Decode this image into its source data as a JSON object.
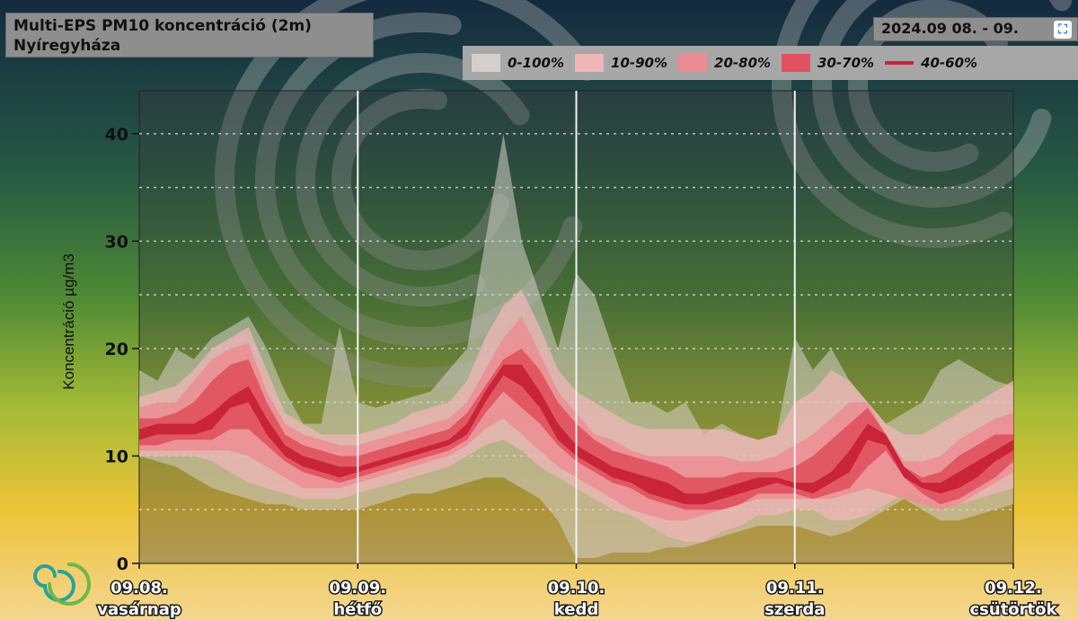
{
  "header": {
    "title": "Multi-EPS PM10 koncentráció (2m)",
    "location": "Nyíregyháza",
    "date_range": "2024.09 08. - 09.",
    "icon": "expand-icon"
  },
  "legend": [
    {
      "label": "0-100%",
      "color": "#d5cfcb"
    },
    {
      "label": "10-90%",
      "color": "#efb6b8"
    },
    {
      "label": "20-80%",
      "color": "#ec8d93"
    },
    {
      "label": "30-70%",
      "color": "#e0525f"
    },
    {
      "label": "40-60%",
      "color": "#c9243a"
    }
  ],
  "chart_data": {
    "type": "area",
    "title": "Multi-EPS PM10 koncentráció (2m)",
    "subtitle": "Nyíregyháza",
    "ylabel": "Koncentráció µg/m3",
    "xlabel": "",
    "ylim": [
      0,
      44
    ],
    "yticks": [
      0,
      10,
      20,
      30,
      40
    ],
    "x_unit": "hours since 09.08. 00:00",
    "xlim": [
      0,
      96
    ],
    "x_ticks": [
      {
        "x": 0,
        "date": "09.08.",
        "day": "vasárnap"
      },
      {
        "x": 24,
        "date": "09.09.",
        "day": "hétfő"
      },
      {
        "x": 48,
        "date": "09.10.",
        "day": "kedd"
      },
      {
        "x": 72,
        "date": "09.11.",
        "day": "szerda"
      },
      {
        "x": 96,
        "date": "09.12.",
        "day": "csütörtök"
      }
    ],
    "grid": true,
    "legend_position": "top-right",
    "x": [
      0,
      2,
      4,
      6,
      8,
      10,
      12,
      14,
      16,
      18,
      20,
      22,
      24,
      26,
      28,
      30,
      32,
      34,
      36,
      38,
      40,
      42,
      44,
      46,
      48,
      50,
      52,
      54,
      56,
      58,
      60,
      62,
      64,
      66,
      68,
      70,
      72,
      74,
      76,
      78,
      80,
      82,
      84,
      86,
      88,
      90,
      92,
      94,
      96
    ],
    "series": [
      {
        "name": "0-100%",
        "lower": [
          10,
          9.5,
          9,
          8,
          7,
          6.5,
          6,
          5.5,
          5.5,
          5,
          5,
          5,
          5,
          5.5,
          6,
          6.5,
          6.5,
          7,
          7.5,
          8,
          8,
          7,
          6,
          4,
          0.5,
          0.5,
          1,
          1,
          1,
          1.5,
          1.5,
          2,
          2.5,
          3,
          3.5,
          3.5,
          3.5,
          3,
          2.5,
          3,
          4,
          5,
          6,
          5,
          4,
          4,
          4.5,
          5,
          5.5
        ],
        "upper": [
          18,
          17,
          20,
          19,
          21,
          22,
          23,
          20,
          16,
          13,
          13,
          22,
          15,
          14.5,
          15,
          15.5,
          16,
          18,
          20,
          30,
          40,
          30,
          25,
          20,
          27,
          25,
          20,
          15,
          15,
          14,
          15,
          12,
          13,
          12,
          11.5,
          12,
          21,
          18,
          20,
          17,
          15,
          13,
          14,
          15,
          18,
          19,
          18,
          17,
          16.5
        ]
      },
      {
        "name": "10-90%",
        "lower": [
          10,
          10,
          10,
          10,
          9.5,
          8.5,
          7.5,
          7,
          6.5,
          6,
          6,
          6,
          6.5,
          7,
          7.5,
          8,
          8.5,
          9,
          10,
          11,
          11.5,
          10.5,
          9,
          8,
          7,
          6,
          5,
          4.5,
          3.5,
          2.5,
          2,
          2,
          3,
          3.5,
          4.5,
          4.5,
          5,
          5,
          4,
          4,
          4.5,
          5.5,
          6.5,
          6,
          5.5,
          5.5,
          6,
          6.5,
          7
        ],
        "upper": [
          15.5,
          16,
          16.5,
          18,
          20,
          21,
          22,
          18,
          14,
          13,
          12,
          12,
          12,
          12.5,
          13,
          14,
          14.5,
          15,
          17,
          21,
          24,
          25.5,
          22,
          18,
          16,
          15,
          14,
          13,
          12.5,
          12.5,
          12.5,
          12.5,
          12.5,
          12,
          11.5,
          12,
          15,
          16,
          18,
          17,
          15,
          13,
          12,
          12,
          13,
          14,
          15,
          16,
          17
        ]
      },
      {
        "name": "20-80%",
        "lower": [
          10.5,
          10.5,
          10.5,
          10.5,
          10.5,
          10.5,
          10,
          9,
          8,
          7,
          7,
          7,
          7.5,
          8,
          8.5,
          9,
          9.5,
          10,
          11,
          12.5,
          13.5,
          12,
          10.5,
          9,
          8,
          7,
          6,
          5,
          4.5,
          4,
          4,
          4.5,
          5,
          5.5,
          6,
          6,
          6,
          6,
          6,
          6.5,
          7,
          6.5,
          6,
          5.5,
          5,
          5.5,
          6.5,
          7.5,
          8.5
        ],
        "upper": [
          14.5,
          15,
          15,
          17,
          19,
          20,
          20.5,
          16,
          13,
          12,
          11.5,
          11,
          11,
          11.5,
          12,
          12.5,
          13,
          13.5,
          15,
          18,
          21,
          23,
          19.5,
          16,
          14,
          12,
          11.5,
          10.5,
          10,
          10,
          10,
          10,
          10,
          9.5,
          9.5,
          10,
          11,
          12,
          13.5,
          15,
          15,
          12,
          9.5,
          9.5,
          10,
          11.5,
          12.5,
          13.5,
          14
        ]
      },
      {
        "name": "30-70%",
        "lower": [
          11,
          11,
          11.5,
          11.5,
          11.5,
          12.5,
          12.5,
          11,
          9.5,
          8.5,
          8,
          7.5,
          8,
          8.5,
          9,
          9.5,
          10,
          10.5,
          11.5,
          14,
          16,
          14.5,
          13,
          11,
          9.5,
          8.5,
          7.5,
          7,
          6,
          5.5,
          5,
          5,
          5,
          5.5,
          6.5,
          6.5,
          6.5,
          6,
          6.5,
          7,
          9,
          10.5,
          8,
          6.5,
          5.5,
          6,
          7,
          8,
          9.5
        ],
        "upper": [
          13.5,
          13.5,
          14,
          15,
          17,
          18.5,
          19,
          15,
          12,
          11,
          10.5,
          10,
          10,
          10.5,
          11,
          11.5,
          12,
          12.5,
          14,
          16.5,
          19,
          20,
          18,
          15,
          13,
          11.5,
          10.5,
          10,
          9.5,
          9,
          8,
          8,
          8,
          8.5,
          8.5,
          8.5,
          9,
          10,
          11.5,
          13,
          14.5,
          12,
          9,
          8,
          8.5,
          10,
          11,
          12,
          12
        ]
      },
      {
        "name": "40-60%",
        "lower": [
          11.5,
          12,
          12,
          12,
          12.5,
          14.5,
          15,
          12,
          10,
          9,
          8.5,
          8,
          8.5,
          9,
          9.5,
          10,
          10.5,
          11,
          12,
          15,
          17.5,
          16.5,
          14.5,
          11.5,
          10,
          9,
          8,
          7.5,
          6.5,
          6,
          5.5,
          5.5,
          6,
          6.5,
          7,
          7.5,
          7,
          6.5,
          7.5,
          8.5,
          11.5,
          11,
          8,
          7,
          6.5,
          7,
          8,
          9.5,
          10.5
        ],
        "upper": [
          12.5,
          13,
          13,
          13,
          14,
          15.5,
          16.5,
          13.5,
          11,
          10,
          9.5,
          9,
          9,
          9.5,
          10,
          10.5,
          11,
          11.5,
          13,
          16,
          18.5,
          18.5,
          16,
          13,
          11,
          10,
          9,
          8.5,
          8,
          7.5,
          6.5,
          6.5,
          7,
          7.5,
          8,
          8,
          7.5,
          7.5,
          8.5,
          10.5,
          13,
          12,
          9,
          7.5,
          7.5,
          8.5,
          9.5,
          10.5,
          11.5
        ]
      }
    ]
  }
}
